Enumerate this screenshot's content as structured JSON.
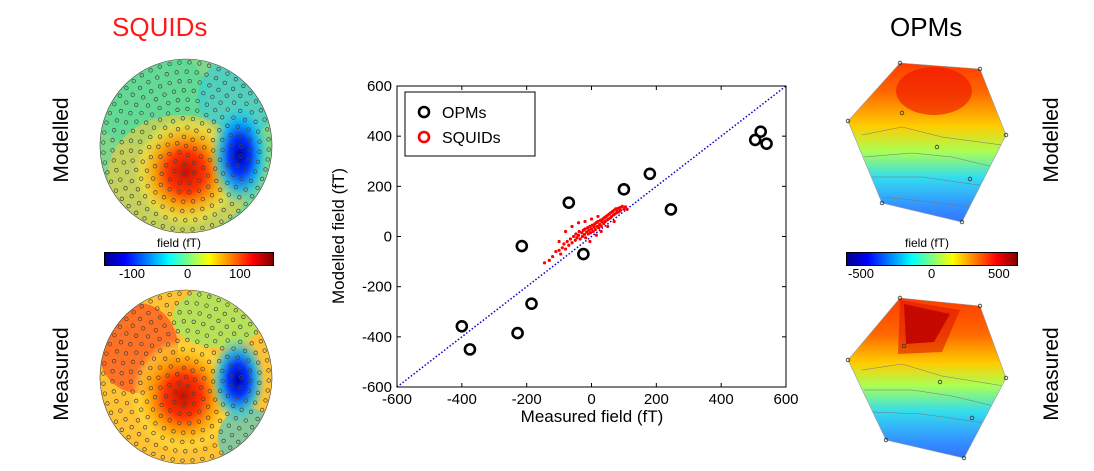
{
  "left_panel": {
    "title": "SQUIDs",
    "title_color": "#ff1a1a",
    "row_labels": [
      "Modelled",
      "Measured"
    ],
    "colorbar": {
      "label": "field (fT)",
      "ticks": [
        "-100",
        "0",
        "100"
      ],
      "min": -150,
      "max": 150
    }
  },
  "right_panel": {
    "title": "OPMs",
    "title_color": "#000000",
    "row_labels": [
      "Modelled",
      "Measured"
    ],
    "colorbar": {
      "label": "field (fT)",
      "ticks": [
        "-500",
        "0",
        "500"
      ],
      "min": -600,
      "max": 600
    }
  },
  "chart_data": {
    "type": "scatter",
    "xlabel": "Measured field (fT)",
    "ylabel": "Modelled field (fT)",
    "xlim": [
      -600,
      600
    ],
    "ylim": [
      -600,
      600
    ],
    "xticks": [
      -600,
      -400,
      -200,
      0,
      200,
      400,
      600
    ],
    "yticks": [
      -600,
      -400,
      -200,
      0,
      200,
      400,
      600
    ],
    "legend": {
      "placement": "top-left",
      "entries": [
        "OPMs",
        "SQUIDs"
      ]
    },
    "identity_line": {
      "color": "#0000cc",
      "style": "dotted"
    },
    "series": [
      {
        "name": "OPMs",
        "color": "#000000",
        "marker": "open-circle",
        "points": [
          [
            -400,
            -358
          ],
          [
            -375,
            -450
          ],
          [
            -228,
            -385
          ],
          [
            -215,
            -38
          ],
          [
            -185,
            -268
          ],
          [
            -70,
            135
          ],
          [
            -25,
            -70
          ],
          [
            100,
            188
          ],
          [
            180,
            250
          ],
          [
            245,
            108
          ],
          [
            505,
            385
          ],
          [
            522,
            418
          ],
          [
            540,
            370
          ]
        ]
      },
      {
        "name": "SQUIDs",
        "color": "#ff0000",
        "marker": "dot",
        "points": [
          [
            -145,
            -105
          ],
          [
            -130,
            -95
          ],
          [
            -120,
            -80
          ],
          [
            -110,
            -60
          ],
          [
            -100,
            -55
          ],
          [
            -95,
            -70
          ],
          [
            -90,
            -45
          ],
          [
            -85,
            -30
          ],
          [
            -80,
            -50
          ],
          [
            -75,
            -20
          ],
          [
            -70,
            -35
          ],
          [
            -65,
            -10
          ],
          [
            -60,
            -25
          ],
          [
            -55,
            0
          ],
          [
            -50,
            -15
          ],
          [
            -48,
            10
          ],
          [
            -45,
            -5
          ],
          [
            -40,
            5
          ],
          [
            -38,
            20
          ],
          [
            -35,
            -10
          ],
          [
            -30,
            15
          ],
          [
            -28,
            0
          ],
          [
            -25,
            25
          ],
          [
            -22,
            8
          ],
          [
            -20,
            30
          ],
          [
            -18,
            -5
          ],
          [
            -15,
            18
          ],
          [
            -12,
            35
          ],
          [
            -10,
            10
          ],
          [
            -8,
            25
          ],
          [
            -5,
            40
          ],
          [
            -3,
            15
          ],
          [
            0,
            30
          ],
          [
            2,
            45
          ],
          [
            5,
            20
          ],
          [
            8,
            38
          ],
          [
            10,
            50
          ],
          [
            12,
            28
          ],
          [
            15,
            55
          ],
          [
            18,
            40
          ],
          [
            20,
            60
          ],
          [
            22,
            35
          ],
          [
            25,
            48
          ],
          [
            28,
            65
          ],
          [
            30,
            42
          ],
          [
            32,
            58
          ],
          [
            35,
            70
          ],
          [
            38,
            52
          ],
          [
            40,
            75
          ],
          [
            42,
            60
          ],
          [
            45,
            80
          ],
          [
            48,
            66
          ],
          [
            50,
            85
          ],
          [
            52,
            70
          ],
          [
            55,
            90
          ],
          [
            58,
            74
          ],
          [
            60,
            95
          ],
          [
            62,
            80
          ],
          [
            65,
            100
          ],
          [
            68,
            86
          ],
          [
            70,
            105
          ],
          [
            72,
            90
          ],
          [
            75,
            110
          ],
          [
            78,
            95
          ],
          [
            80,
            100
          ],
          [
            82,
            112
          ],
          [
            85,
            98
          ],
          [
            88,
            115
          ],
          [
            90,
            105
          ],
          [
            95,
            120
          ],
          [
            100,
            110
          ],
          [
            105,
            118
          ],
          [
            110,
            108
          ],
          [
            -60,
            40
          ],
          [
            -40,
            55
          ],
          [
            -20,
            60
          ],
          [
            0,
            70
          ],
          [
            20,
            80
          ],
          [
            -100,
            -20
          ],
          [
            -80,
            20
          ],
          [
            30,
            20
          ],
          [
            50,
            40
          ],
          [
            70,
            60
          ],
          [
            -5,
            -20
          ],
          [
            15,
            5
          ]
        ]
      }
    ]
  }
}
